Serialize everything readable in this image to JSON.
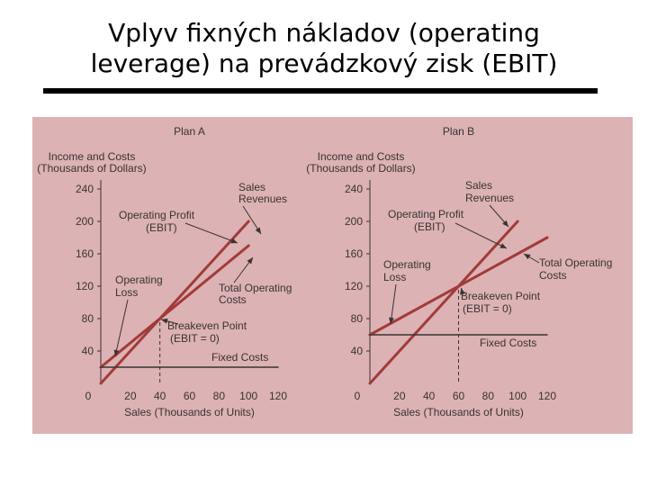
{
  "title": {
    "line1": "Vplyv fixných nákladov (operating",
    "line2": "leverage) na prevádzkový zisk (EBIT)"
  },
  "colors": {
    "background": "#ffffff",
    "figure_background": "#dcb2b4",
    "line_color": "#a23a3a",
    "axis_color": "#3a3232"
  },
  "chart_data": [
    {
      "type": "line",
      "title": "Plan A",
      "ylabel_line1": "Income and Costs",
      "ylabel_line2": "(Thousands of Dollars)",
      "xlabel": "Sales (Thousands of Units)",
      "x_ticks": [
        0,
        20,
        40,
        60,
        80,
        100,
        120
      ],
      "y_ticks": [
        40,
        80,
        120,
        160,
        200,
        240
      ],
      "xlim": [
        0,
        120
      ],
      "ylim": [
        0,
        240
      ],
      "series": [
        {
          "name": "Sales Revenues",
          "x": [
            0,
            100
          ],
          "y": [
            0,
            200
          ]
        },
        {
          "name": "Total Operating Costs",
          "x": [
            0,
            100
          ],
          "y": [
            20,
            170
          ]
        },
        {
          "name": "Fixed Costs",
          "x": [
            0,
            120
          ],
          "y": [
            20,
            20
          ]
        }
      ],
      "breakeven": {
        "x": 40,
        "y": 80
      },
      "annotations": {
        "sales_1": "Sales",
        "sales_2": "Revenues",
        "profit_1": "Operating Profit",
        "profit_2": "(EBIT)",
        "loss_1": "Operating",
        "loss_2": "Loss",
        "toc_1": "Total Operating",
        "toc_2": "Costs",
        "be_1": "Breakeven Point",
        "be_2": "(EBIT = 0)",
        "fixed": "Fixed Costs"
      }
    },
    {
      "type": "line",
      "title": "Plan B",
      "ylabel_line1": "Income and Costs",
      "ylabel_line2": "(Thousands of Dollars)",
      "xlabel": "Sales (Thousands of Units)",
      "x_ticks": [
        0,
        20,
        40,
        60,
        80,
        100,
        120
      ],
      "y_ticks": [
        40,
        80,
        120,
        160,
        200,
        240
      ],
      "xlim": [
        0,
        120
      ],
      "ylim": [
        0,
        240
      ],
      "series": [
        {
          "name": "Sales Revenues",
          "x": [
            0,
            100
          ],
          "y": [
            0,
            200
          ]
        },
        {
          "name": "Total Operating Costs",
          "x": [
            0,
            120
          ],
          "y": [
            60,
            180
          ]
        },
        {
          "name": "Fixed Costs",
          "x": [
            0,
            120
          ],
          "y": [
            60,
            60
          ]
        }
      ],
      "breakeven": {
        "x": 60,
        "y": 120
      },
      "annotations": {
        "sales_1": "Sales",
        "sales_2": "Revenues",
        "profit_1": "Operating Profit",
        "profit_2": "(EBIT)",
        "loss_1": "Operating",
        "loss_2": "Loss",
        "toc_1": "Total Operating",
        "toc_2": "Costs",
        "be_1": "Breakeven Point",
        "be_2": "(EBIT = 0)",
        "fixed": "Fixed Costs"
      }
    }
  ]
}
